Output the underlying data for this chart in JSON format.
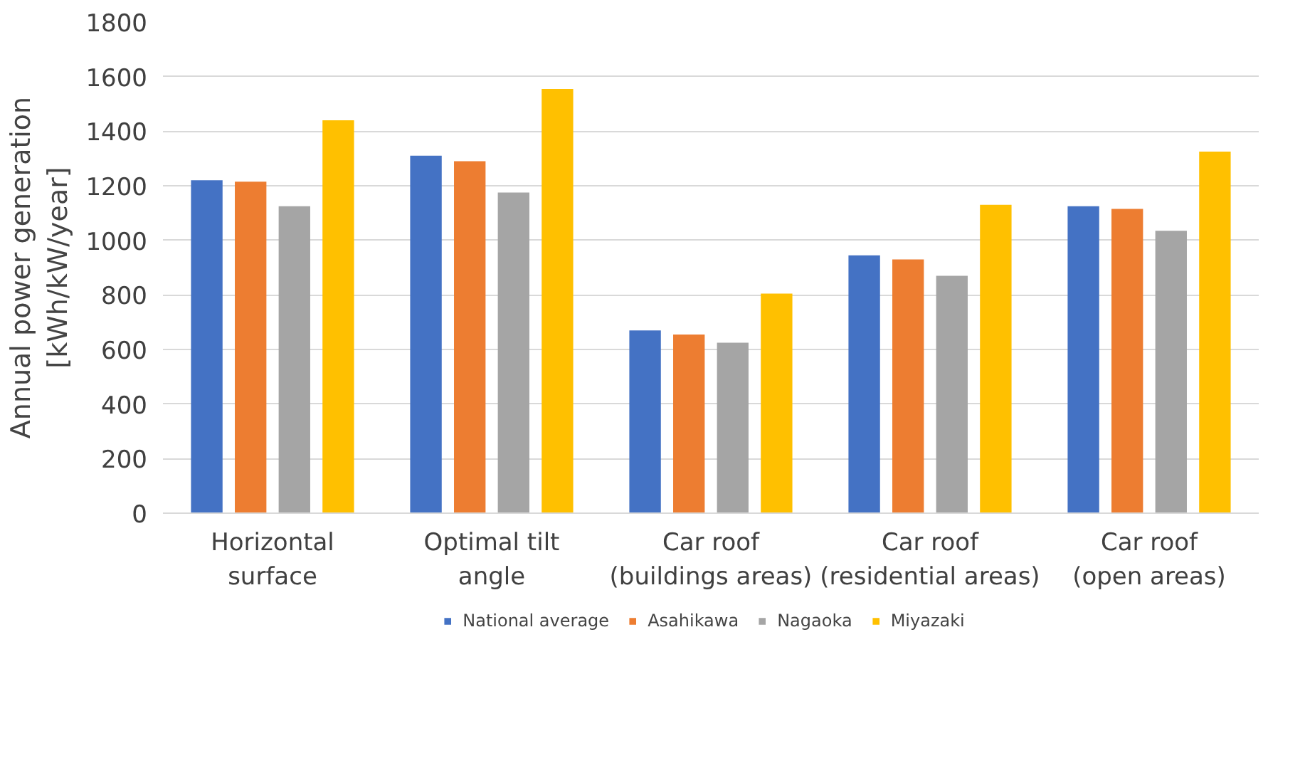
{
  "chart_data": {
    "type": "bar",
    "ylabel": "Annual power generation\n[kWh/kW/year]",
    "categories": [
      "Horizontal\nsurface",
      "Optimal tilt\nangle",
      "Car roof\n(buildings areas)",
      "Car roof\n(residential areas)",
      "Car roof\n(open areas)"
    ],
    "series": [
      {
        "name": "National average",
        "color": "#4472c4",
        "values": [
          1220,
          1310,
          670,
          945,
          1125
        ]
      },
      {
        "name": "Asahikawa",
        "color": "#ed7d31",
        "values": [
          1215,
          1290,
          655,
          930,
          1115
        ]
      },
      {
        "name": "Nagaoka",
        "color": "#a5a5a5",
        "values": [
          1125,
          1175,
          625,
          870,
          1035
        ]
      },
      {
        "name": "Miyazaki",
        "color": "#ffc000",
        "values": [
          1440,
          1555,
          805,
          1130,
          1325
        ]
      }
    ],
    "ylim": [
      0,
      1800
    ],
    "yticks": [
      0,
      200,
      400,
      600,
      800,
      1000,
      1200,
      1400,
      1600,
      1800
    ],
    "grid": "y",
    "legend": "bottom"
  }
}
